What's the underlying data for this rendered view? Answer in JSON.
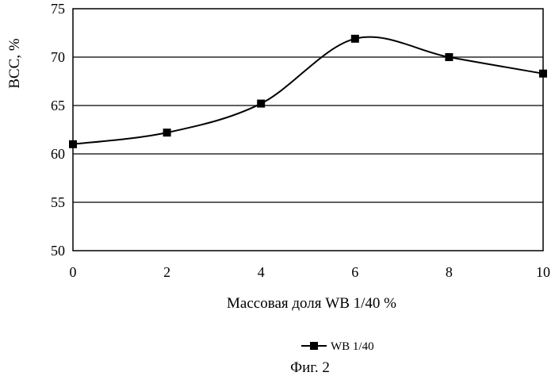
{
  "chart_data": {
    "type": "line",
    "x": [
      0,
      2,
      4,
      6,
      8,
      10
    ],
    "series": [
      {
        "name": "WB 1/40",
        "values": [
          61.0,
          62.2,
          65.2,
          71.9,
          70.0,
          68.3
        ]
      }
    ],
    "xlabel": "Массовая доля WB 1/40  %",
    "ylabel": "ВСС, %",
    "xlim": [
      0,
      10
    ],
    "ylim": [
      50,
      75
    ],
    "x_ticks": [
      "0",
      "2",
      "4",
      "6",
      "8",
      "10"
    ],
    "y_ticks": [
      "50",
      "55",
      "60",
      "65",
      "70",
      "75"
    ],
    "grid": "horizontal",
    "legend": "bottom-center",
    "line_style": "smooth",
    "marker": "square",
    "color": "#000000"
  },
  "caption": "Фиг. 2"
}
